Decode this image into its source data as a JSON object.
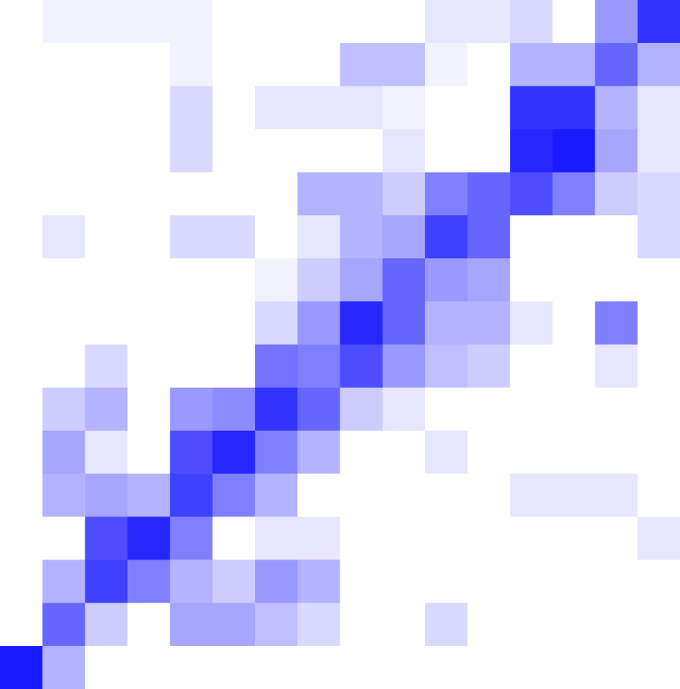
{
  "chart_data": {
    "type": "heatmap",
    "color": "#0000ff",
    "zlim": [
      0,
      1
    ],
    "values": [
      [
        0,
        0.05,
        0.05,
        0.05,
        0.05,
        0,
        0,
        0,
        0,
        0,
        0.1,
        0.1,
        0.15,
        0,
        0.4,
        0.8
      ],
      [
        0,
        0,
        0,
        0,
        0.05,
        0,
        0,
        0,
        0.25,
        0.25,
        0.05,
        0,
        0.3,
        0.3,
        0.6,
        0.3
      ],
      [
        0,
        0,
        0,
        0,
        0.15,
        0,
        0.1,
        0.1,
        0.1,
        0.05,
        0,
        0,
        0.8,
        0.8,
        0.3,
        0.1
      ],
      [
        0,
        0,
        0,
        0,
        0.15,
        0,
        0,
        0,
        0,
        0.1,
        0,
        0,
        0.85,
        0.9,
        0.35,
        0.1
      ],
      [
        0,
        0,
        0,
        0,
        0,
        0,
        0,
        0.3,
        0.3,
        0.2,
        0.5,
        0.6,
        0.7,
        0.5,
        0.2,
        0.15
      ],
      [
        0,
        0.1,
        0,
        0,
        0.15,
        0.15,
        0,
        0.1,
        0.3,
        0.35,
        0.75,
        0.6,
        0,
        0,
        0,
        0.15
      ],
      [
        0,
        0,
        0,
        0,
        0,
        0,
        0.05,
        0.2,
        0.35,
        0.6,
        0.4,
        0.35,
        0,
        0,
        0,
        0
      ],
      [
        0,
        0,
        0,
        0,
        0,
        0,
        0.15,
        0.4,
        0.85,
        0.6,
        0.3,
        0.3,
        0.1,
        0,
        0.5,
        0
      ],
      [
        0,
        0,
        0.15,
        0,
        0,
        0,
        0.55,
        0.5,
        0.7,
        0.4,
        0.25,
        0.2,
        0,
        0,
        0.1,
        0
      ],
      [
        0,
        0.2,
        0.3,
        0,
        0.4,
        0.45,
        0.8,
        0.6,
        0.2,
        0.1,
        0,
        0,
        0,
        0,
        0,
        0
      ],
      [
        0,
        0.35,
        0.1,
        0,
        0.7,
        0.85,
        0.5,
        0.3,
        0,
        0,
        0.1,
        0,
        0,
        0,
        0,
        0
      ],
      [
        0,
        0.3,
        0.35,
        0.3,
        0.75,
        0.5,
        0.3,
        0,
        0,
        0,
        0,
        0,
        0.1,
        0.1,
        0.1,
        0
      ],
      [
        0,
        0,
        0.7,
        0.85,
        0.5,
        0,
        0.1,
        0.1,
        0,
        0,
        0,
        0,
        0,
        0,
        0,
        0.1
      ],
      [
        0,
        0.3,
        0.75,
        0.5,
        0.3,
        0.2,
        0.4,
        0.3,
        0,
        0,
        0,
        0,
        0,
        0,
        0,
        0
      ],
      [
        0,
        0.6,
        0.2,
        0,
        0.35,
        0.35,
        0.25,
        0.15,
        0,
        0,
        0.15,
        0,
        0,
        0,
        0,
        0
      ],
      [
        0.9,
        0.3,
        0,
        0,
        0,
        0,
        0,
        0,
        0,
        0,
        0,
        0,
        0,
        0,
        0,
        0
      ]
    ]
  }
}
